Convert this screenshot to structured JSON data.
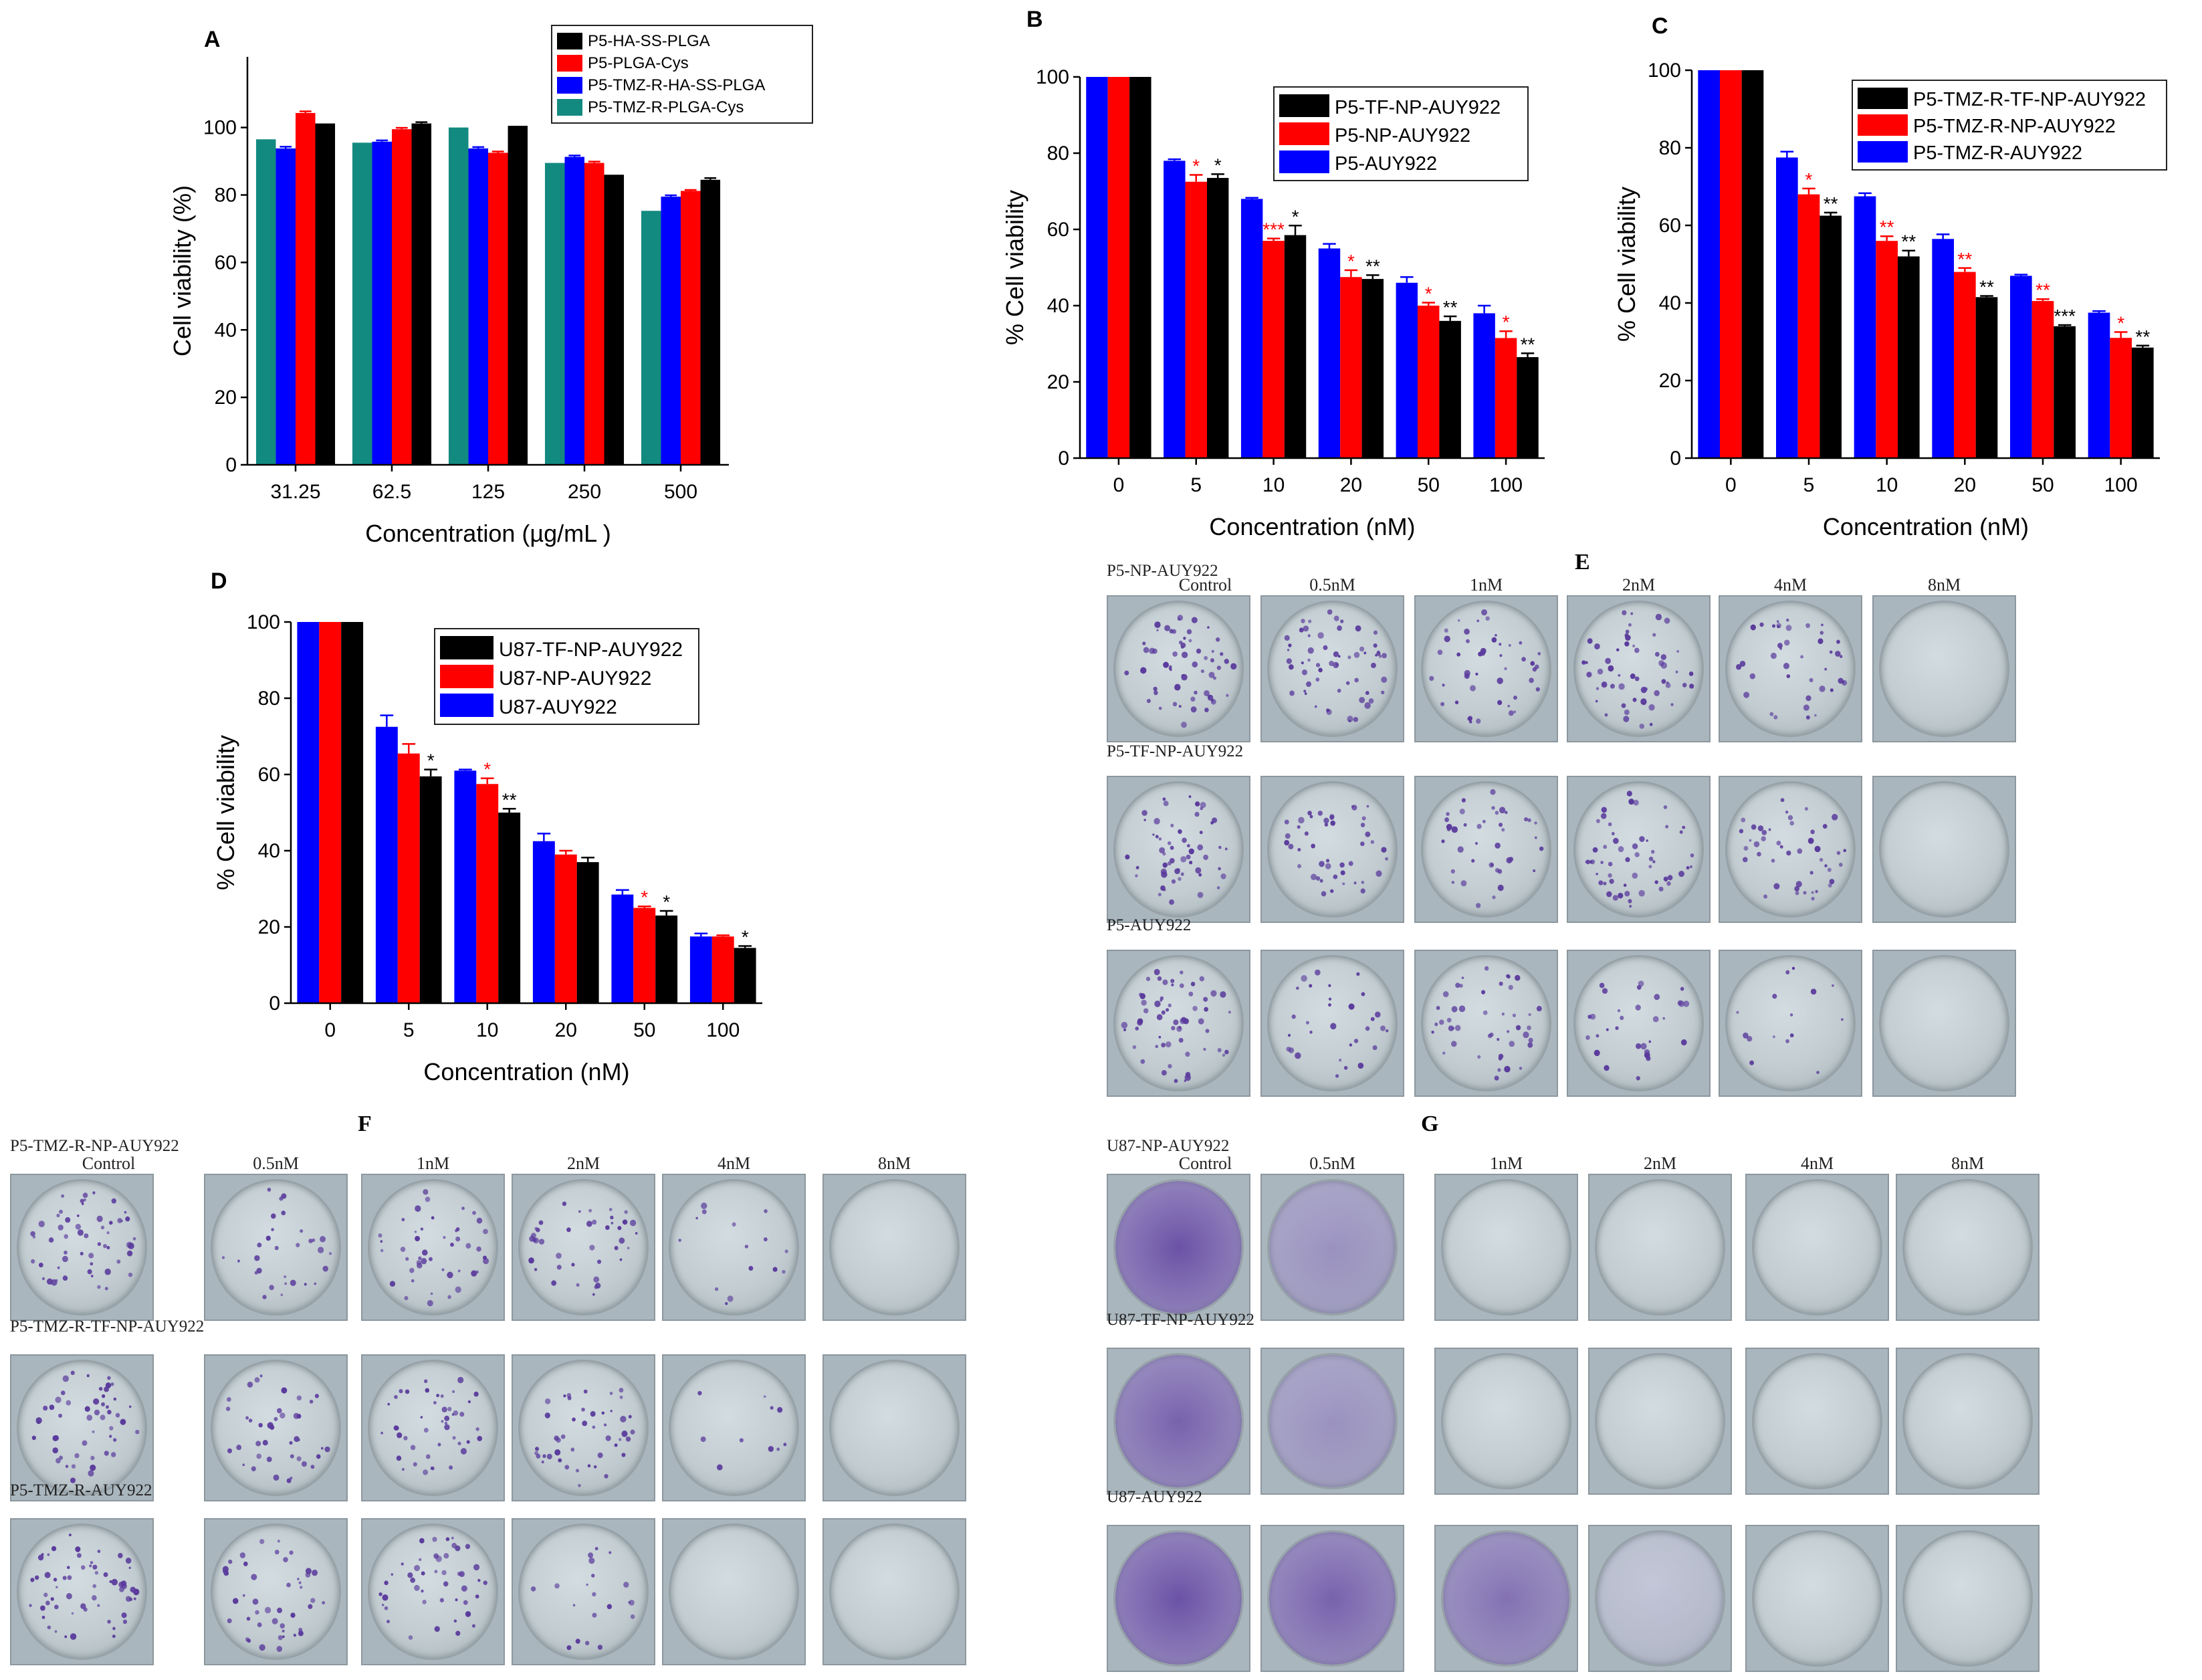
{
  "colors": {
    "black": "#000000",
    "red": "#ff0000",
    "blue": "#0000ff",
    "teal": "#138a80",
    "stain": "#5a3a9c"
  },
  "charts": {
    "chart_data": [
      {
        "id": "A",
        "type": "bar",
        "panel_label": "A",
        "xlabel": "Concentration (µg/mL )",
        "ylabel": "Cell viability (%)",
        "ylim": [
          0,
          115
        ],
        "yticks": [
          0,
          20,
          40,
          60,
          80,
          100
        ],
        "categories": [
          "31.25",
          "62.5",
          "125",
          "250",
          "500"
        ],
        "legend_position": "top-right",
        "series": [
          {
            "name": "P5-TMZ-R-PLGA-Cys",
            "color": "#138a80",
            "values": [
              96.5,
              95.5,
              100,
              89.5,
              75.3
            ],
            "errors": [
              0,
              0,
              0,
              0,
              0
            ]
          },
          {
            "name": "P5-TMZ-R-HA-SS-PLGA",
            "color": "#0000ff",
            "values": [
              93.8,
              95.8,
              93.8,
              91.3,
              79.5
            ],
            "errors": [
              0.5,
              0.4,
              0.4,
              0.4,
              0.4
            ]
          },
          {
            "name": "P5-PLGA-Cys",
            "color": "#ff0000",
            "values": [
              104.3,
              99.5,
              92.5,
              89.5,
              81.2
            ],
            "errors": [
              0.5,
              0.4,
              0.4,
              0.4,
              0.3
            ]
          },
          {
            "name": "P5-HA-SS-PLGA",
            "color": "#000000",
            "values": [
              101.2,
              101.2,
              100.5,
              86.0,
              84.5
            ],
            "errors": [
              0,
              0.4,
              0,
              0,
              0.5
            ]
          }
        ],
        "legend_order": [
          "P5-HA-SS-PLGA",
          "P5-PLGA-Cys",
          "P5-TMZ-R-HA-SS-PLGA",
          "P5-TMZ-R-PLGA-Cys"
        ]
      },
      {
        "id": "B",
        "type": "bar",
        "panel_label": "B",
        "xlabel": "Concentration (nM)",
        "ylabel": "% Cell viability",
        "ylim": [
          0,
          100
        ],
        "yticks": [
          0,
          20,
          40,
          60,
          80,
          100
        ],
        "categories": [
          "0",
          "5",
          "10",
          "20",
          "50",
          "100"
        ],
        "legend_position": "top-right",
        "series": [
          {
            "name": "P5-AUY922",
            "color": "#0000ff",
            "values": [
              100,
              78.0,
              68.0,
              55.0,
              46.0,
              38.0
            ],
            "errors": [
              0,
              0.4,
              0.3,
              1.2,
              1.5,
              2.0
            ]
          },
          {
            "name": "P5-NP-AUY922",
            "color": "#ff0000",
            "values": [
              100,
              72.5,
              57.0,
              47.5,
              40.0,
              31.5
            ],
            "errors": [
              0,
              1.8,
              0.6,
              1.8,
              0.8,
              1.8
            ]
          },
          {
            "name": "P5-TF-NP-AUY922",
            "color": "#000000",
            "values": [
              100,
              73.5,
              58.5,
              47.0,
              36.0,
              26.5
            ],
            "errors": [
              0,
              1.0,
              2.5,
              1.0,
              1.2,
              1.0
            ]
          }
        ],
        "annotations": [
          {
            "category": "5",
            "series": "P5-NP-AUY922",
            "text": "*",
            "color": "#ff0000"
          },
          {
            "category": "5",
            "series": "P5-TF-NP-AUY922",
            "text": "*",
            "color": "#000000"
          },
          {
            "category": "10",
            "series": "P5-NP-AUY922",
            "text": "***",
            "color": "#ff0000"
          },
          {
            "category": "10",
            "series": "P5-TF-NP-AUY922",
            "text": "*",
            "color": "#000000"
          },
          {
            "category": "20",
            "series": "P5-NP-AUY922",
            "text": "*",
            "color": "#ff0000"
          },
          {
            "category": "20",
            "series": "P5-TF-NP-AUY922",
            "text": "**",
            "color": "#000000"
          },
          {
            "category": "50",
            "series": "P5-NP-AUY922",
            "text": "*",
            "color": "#ff0000"
          },
          {
            "category": "50",
            "series": "P5-TF-NP-AUY922",
            "text": "**",
            "color": "#000000"
          },
          {
            "category": "100",
            "series": "P5-NP-AUY922",
            "text": "*",
            "color": "#ff0000"
          },
          {
            "category": "100",
            "series": "P5-TF-NP-AUY922",
            "text": "**",
            "color": "#000000"
          }
        ],
        "legend_order": [
          "P5-TF-NP-AUY922",
          "P5-NP-AUY922",
          "P5-AUY922"
        ]
      },
      {
        "id": "C",
        "type": "bar",
        "panel_label": "C",
        "xlabel": "Concentration (nM)",
        "ylabel": "% Cell viability",
        "ylim": [
          0,
          100
        ],
        "yticks": [
          0,
          20,
          40,
          60,
          80,
          100
        ],
        "categories": [
          "0",
          "5",
          "10",
          "20",
          "50",
          "100"
        ],
        "legend_position": "top-right",
        "series": [
          {
            "name": "P5-TMZ-R-AUY922",
            "color": "#0000ff",
            "values": [
              100,
              77.5,
              67.5,
              56.5,
              47.0,
              37.5
            ],
            "errors": [
              0,
              1.5,
              0.8,
              1.2,
              0.3,
              0.4
            ]
          },
          {
            "name": "P5-TMZ-R-NP-AUY922",
            "color": "#ff0000",
            "values": [
              100,
              68.0,
              56.0,
              48.0,
              40.5,
              31.0
            ],
            "errors": [
              0,
              1.5,
              1.2,
              1.0,
              0.5,
              1.5
            ]
          },
          {
            "name": "P5-TMZ-R-TF-NP-AUY922",
            "color": "#000000",
            "values": [
              100,
              62.5,
              52.0,
              41.5,
              34.0,
              28.5
            ],
            "errors": [
              0,
              0.8,
              1.5,
              0.3,
              0.3,
              0.5
            ]
          }
        ],
        "annotations": [
          {
            "category": "5",
            "series": "P5-TMZ-R-NP-AUY922",
            "text": "*",
            "color": "#ff0000"
          },
          {
            "category": "5",
            "series": "P5-TMZ-R-TF-NP-AUY922",
            "text": "**",
            "color": "#000000"
          },
          {
            "category": "10",
            "series": "P5-TMZ-R-NP-AUY922",
            "text": "**",
            "color": "#ff0000"
          },
          {
            "category": "10",
            "series": "P5-TMZ-R-TF-NP-AUY922",
            "text": "**",
            "color": "#000000"
          },
          {
            "category": "20",
            "series": "P5-TMZ-R-NP-AUY922",
            "text": "**",
            "color": "#ff0000"
          },
          {
            "category": "20",
            "series": "P5-TMZ-R-TF-NP-AUY922",
            "text": "**",
            "color": "#000000"
          },
          {
            "category": "50",
            "series": "P5-TMZ-R-NP-AUY922",
            "text": "**",
            "color": "#ff0000"
          },
          {
            "category": "50",
            "series": "P5-TMZ-R-TF-NP-AUY922",
            "text": "***",
            "color": "#000000"
          },
          {
            "category": "100",
            "series": "P5-TMZ-R-NP-AUY922",
            "text": "*",
            "color": "#ff0000"
          },
          {
            "category": "100",
            "series": "P5-TMZ-R-TF-NP-AUY922",
            "text": "**",
            "color": "#000000"
          }
        ],
        "legend_order": [
          "P5-TMZ-R-TF-NP-AUY922",
          "P5-TMZ-R-NP-AUY922",
          "P5-TMZ-R-AUY922"
        ]
      },
      {
        "id": "D",
        "type": "bar",
        "panel_label": "D",
        "xlabel": "Concentration (nM)",
        "ylabel": "% Cell viability",
        "ylim": [
          0,
          100
        ],
        "yticks": [
          0,
          20,
          40,
          60,
          80,
          100
        ],
        "categories": [
          "0",
          "5",
          "10",
          "20",
          "50",
          "100"
        ],
        "legend_position": "top-right",
        "series": [
          {
            "name": "U87-AUY922",
            "color": "#0000ff",
            "values": [
              100,
              72.5,
              61.0,
              42.5,
              28.5,
              17.5
            ],
            "errors": [
              0,
              3.0,
              0.3,
              2.0,
              1.2,
              0.8
            ]
          },
          {
            "name": "U87-NP-AUY922",
            "color": "#ff0000",
            "values": [
              100,
              65.5,
              57.5,
              39.0,
              25.0,
              17.5
            ],
            "errors": [
              0,
              2.5,
              1.5,
              1.0,
              0.4,
              0.3
            ]
          },
          {
            "name": "U87-TF-NP-AUY922",
            "color": "#000000",
            "values": [
              100,
              59.5,
              50.0,
              37.0,
              23.0,
              14.5
            ],
            "errors": [
              0,
              1.8,
              1.0,
              1.2,
              1.2,
              0.5
            ]
          }
        ],
        "annotations": [
          {
            "category": "5",
            "series": "U87-TF-NP-AUY922",
            "text": "*",
            "color": "#000000"
          },
          {
            "category": "10",
            "series": "U87-NP-AUY922",
            "text": "*",
            "color": "#ff0000"
          },
          {
            "category": "10",
            "series": "U87-TF-NP-AUY922",
            "text": "**",
            "color": "#000000"
          },
          {
            "category": "50",
            "series": "U87-NP-AUY922",
            "text": "*",
            "color": "#ff0000"
          },
          {
            "category": "50",
            "series": "U87-TF-NP-AUY922",
            "text": "*",
            "color": "#000000"
          },
          {
            "category": "100",
            "series": "U87-TF-NP-AUY922",
            "text": "*",
            "color": "#000000"
          }
        ],
        "legend_order": [
          "U87-TF-NP-AUY922",
          "U87-NP-AUY922",
          "U87-AUY922"
        ]
      }
    ]
  },
  "colony_panels": {
    "E": {
      "panel_label": "E",
      "doses": [
        "Control",
        "0.5nM",
        "1nM",
        "2nM",
        "4nM",
        "8nM"
      ],
      "rows": [
        {
          "label": "P5-NP-AUY922",
          "density": [
            60,
            60,
            45,
            55,
            40,
            0
          ],
          "diffuse": [
            0,
            0,
            0,
            0,
            0,
            0
          ]
        },
        {
          "label": "P5-TF-NP-AUY922",
          "density": [
            55,
            45,
            40,
            55,
            45,
            0
          ],
          "diffuse": [
            0,
            0,
            0,
            0,
            0,
            0
          ]
        },
        {
          "label": "P5-AUY922",
          "density": [
            60,
            30,
            45,
            30,
            15,
            0
          ],
          "diffuse": [
            0,
            0,
            0,
            0,
            0,
            0
          ]
        }
      ]
    },
    "F": {
      "panel_label": "F",
      "doses": [
        "Control",
        "0.5nM",
        "1nM",
        "2nM",
        "4nM",
        "8nM"
      ],
      "rows": [
        {
          "label": "P5-TMZ-R-NP-AUY922",
          "density": [
            55,
            30,
            45,
            40,
            15,
            0
          ],
          "diffuse": [
            0,
            0,
            0,
            0,
            0,
            0
          ]
        },
        {
          "label": "P5-TMZ-R-TF-NP-AUY922",
          "density": [
            50,
            40,
            45,
            45,
            10,
            0
          ],
          "diffuse": [
            0,
            0,
            0,
            0,
            0,
            0
          ]
        },
        {
          "label": "P5-TMZ-R-AUY922",
          "density": [
            60,
            45,
            45,
            20,
            0,
            0
          ],
          "diffuse": [
            0,
            0,
            0,
            0,
            0,
            0
          ]
        }
      ]
    },
    "G": {
      "panel_label": "G",
      "doses": [
        "Control",
        "0.5nM",
        "1nM",
        "2nM",
        "4nM",
        "8nM"
      ],
      "rows": [
        {
          "label": "U87-NP-AUY922",
          "density": [
            0,
            0,
            0,
            0,
            0,
            0
          ],
          "diffuse": [
            0.85,
            0.45,
            0,
            0,
            0,
            0
          ]
        },
        {
          "label": "U87-TF-NP-AUY922",
          "density": [
            0,
            0,
            0,
            0,
            0,
            0
          ],
          "diffuse": [
            0.75,
            0.45,
            0,
            0,
            0,
            0
          ]
        },
        {
          "label": "U87-AUY922",
          "density": [
            0,
            0,
            0,
            0,
            0,
            0
          ],
          "diffuse": [
            0.85,
            0.75,
            0.65,
            0.15,
            0,
            0
          ]
        }
      ]
    }
  }
}
